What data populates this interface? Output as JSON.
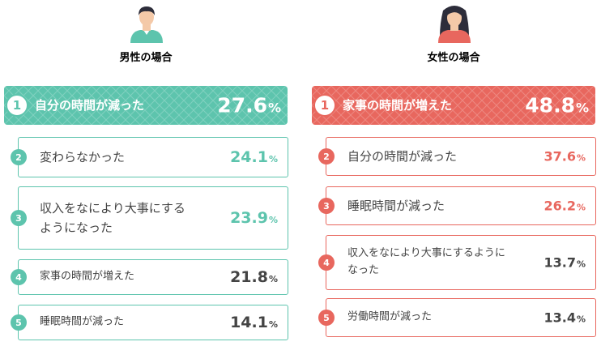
{
  "male": {
    "title": "男性の場合",
    "color": "#5dc4ad",
    "items": [
      {
        "rank": "1",
        "label": "自分の時間が減った",
        "value": "27.6",
        "unit": "%"
      },
      {
        "rank": "2",
        "label": "変わらなかった",
        "value": "24.1",
        "unit": "%"
      },
      {
        "rank": "3",
        "label": "収入をなにより大事にする\nようになった",
        "value": "23.9",
        "unit": "%"
      },
      {
        "rank": "4",
        "label": "家事の時間が増えた",
        "value": "21.8",
        "unit": "%"
      },
      {
        "rank": "5",
        "label": "睡眠時間が減った",
        "value": "14.1",
        "unit": "%"
      }
    ]
  },
  "female": {
    "title": "女性の場合",
    "color": "#e8675e",
    "items": [
      {
        "rank": "1",
        "label": "家事の時間が増えた",
        "value": "48.8",
        "unit": "%"
      },
      {
        "rank": "2",
        "label": "自分の時間が減った",
        "value": "37.6",
        "unit": "%"
      },
      {
        "rank": "3",
        "label": "睡眠時間が減った",
        "value": "26.2",
        "unit": "%"
      },
      {
        "rank": "4",
        "label": "収入をなにより大事にするように\nなった",
        "value": "13.7",
        "unit": "%"
      },
      {
        "rank": "5",
        "label": "労働時間が減った",
        "value": "13.4",
        "unit": "%"
      }
    ]
  }
}
